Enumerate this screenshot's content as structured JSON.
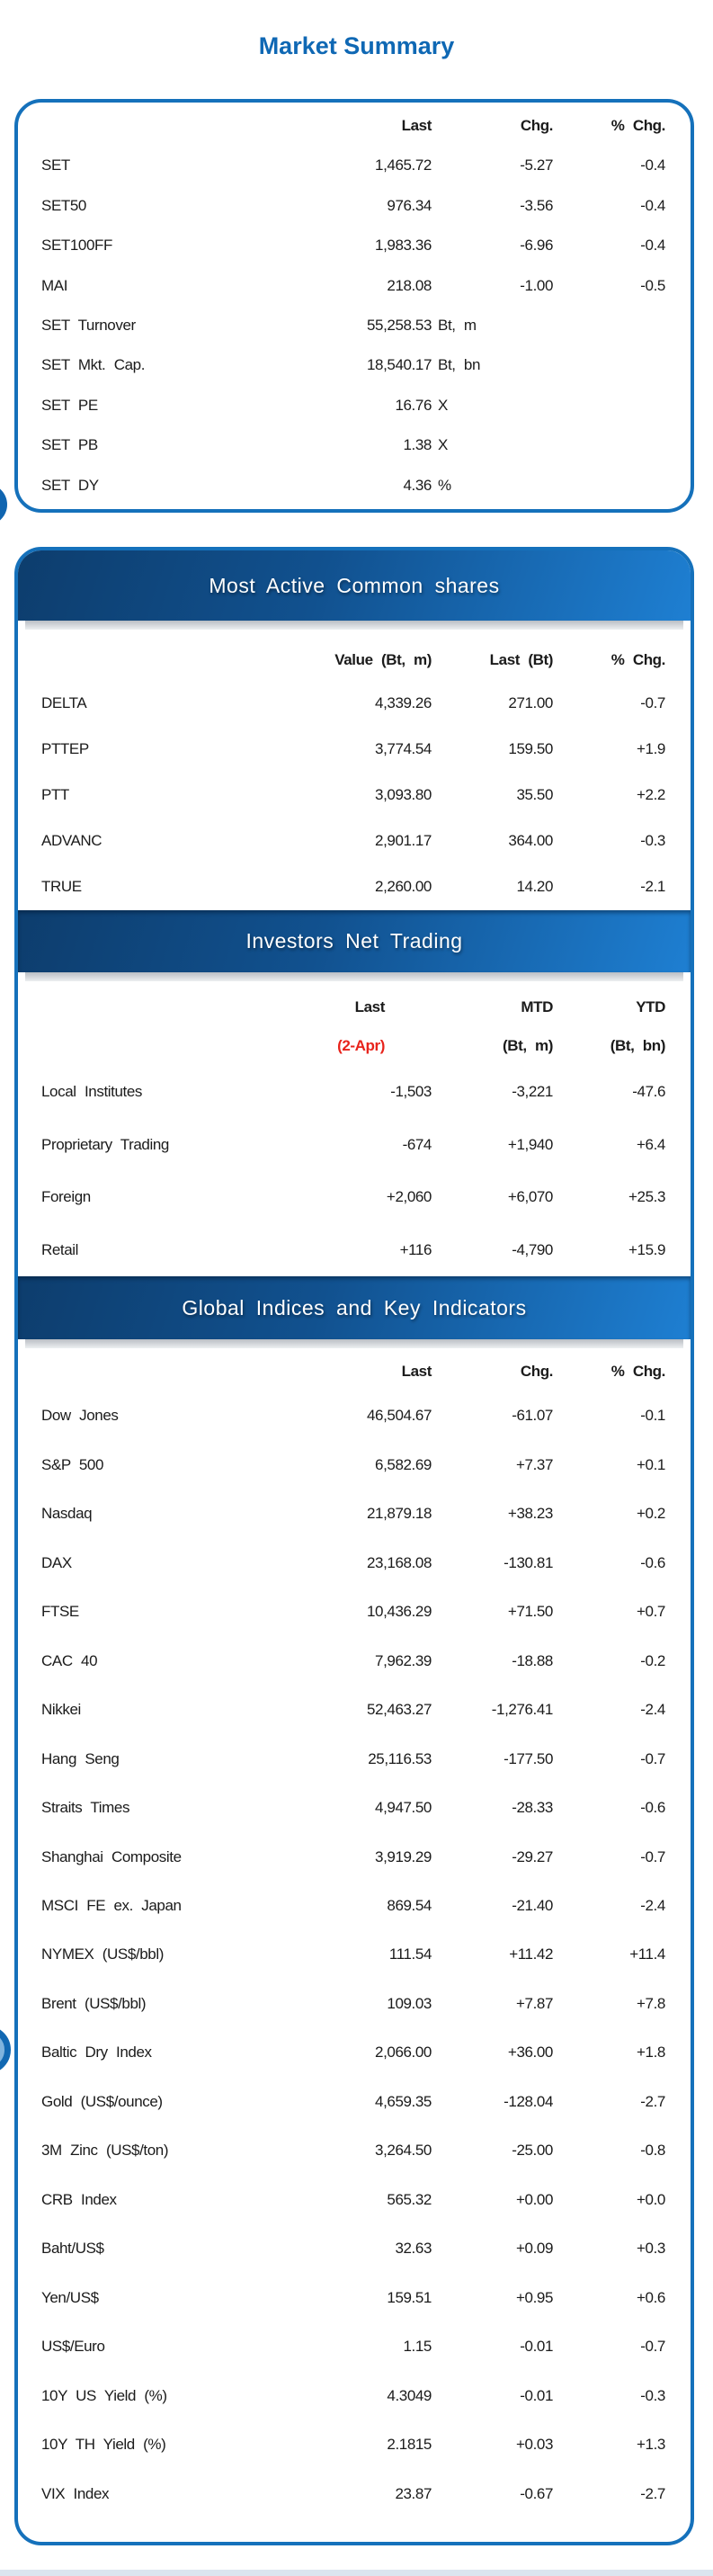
{
  "page_title": "Market Summary",
  "colors": {
    "accent_blue": "#1571bb",
    "title_blue": "#0f68b4",
    "bar_gradient_dark": "#0d3d6d",
    "bar_gradient_light": "#1e7fd2",
    "date_red": "#e8231b"
  },
  "market_summary": {
    "columns": [
      "Last",
      "Chg.",
      "% Chg."
    ],
    "rows": [
      {
        "label": "SET",
        "last": "1,465.72",
        "chg": "-5.27",
        "pct": "-0.4"
      },
      {
        "label": "SET50",
        "last": "976.34",
        "chg": "-3.56",
        "pct": "-0.4"
      },
      {
        "label": "SET100FF",
        "last": "1,983.36",
        "chg": "-6.96",
        "pct": "-0.4"
      },
      {
        "label": "MAI",
        "last": "218.08",
        "chg": "-1.00",
        "pct": "-0.5"
      },
      {
        "label": "SET Turnover",
        "last": "55,258.53",
        "suffix": "Bt, m"
      },
      {
        "label": "SET Mkt. Cap.",
        "last": "18,540.17",
        "suffix": "Bt, bn"
      },
      {
        "label": "SET PE",
        "last": "16.76",
        "suffix": "X"
      },
      {
        "label": "SET PB",
        "last": "1.38",
        "suffix": "X"
      },
      {
        "label": "SET DY",
        "last": "4.36",
        "suffix": "%"
      }
    ]
  },
  "most_active": {
    "title": "Most Active Common shares",
    "columns": [
      "Value (Bt, m)",
      "Last (Bt)",
      "% Chg."
    ],
    "rows": [
      {
        "label": "DELTA",
        "value": "4,339.26",
        "last": "271.00",
        "pct": "-0.7"
      },
      {
        "label": "PTTEP",
        "value": "3,774.54",
        "last": "159.50",
        "pct": "+1.9"
      },
      {
        "label": "PTT",
        "value": "3,093.80",
        "last": "35.50",
        "pct": "+2.2"
      },
      {
        "label": "ADVANC",
        "value": "2,901.17",
        "last": "364.00",
        "pct": "-0.3"
      },
      {
        "label": "TRUE",
        "value": "2,260.00",
        "last": "14.20",
        "pct": "-2.1"
      }
    ]
  },
  "investors": {
    "title": "Investors Net Trading",
    "columns": [
      "Last",
      "MTD",
      "YTD"
    ],
    "subcolumns": [
      "(2-Apr)",
      "(Bt, m)",
      "(Bt, bn)"
    ],
    "rows": [
      {
        "label": "Local Institutes",
        "last": "-1,503",
        "mtd": "-3,221",
        "ytd": "-47.6"
      },
      {
        "label": "Proprietary Trading",
        "last": "-674",
        "mtd": "+1,940",
        "ytd": "+6.4"
      },
      {
        "label": "Foreign",
        "last": "+2,060",
        "mtd": "+6,070",
        "ytd": "+25.3"
      },
      {
        "label": "Retail",
        "last": "+116",
        "mtd": "-4,790",
        "ytd": "+15.9"
      }
    ]
  },
  "global_indices": {
    "title": "Global Indices and Key Indicators",
    "columns": [
      "Last",
      "Chg.",
      "% Chg."
    ],
    "rows": [
      {
        "label": "Dow Jones",
        "last": "46,504.67",
        "chg": "-61.07",
        "pct": "-0.1"
      },
      {
        "label": "S&P 500",
        "last": "6,582.69",
        "chg": "+7.37",
        "pct": "+0.1"
      },
      {
        "label": "Nasdaq",
        "last": "21,879.18",
        "chg": "+38.23",
        "pct": "+0.2"
      },
      {
        "label": "DAX",
        "last": "23,168.08",
        "chg": "-130.81",
        "pct": "-0.6"
      },
      {
        "label": "FTSE",
        "last": "10,436.29",
        "chg": "+71.50",
        "pct": "+0.7"
      },
      {
        "label": "CAC 40",
        "last": "7,962.39",
        "chg": "-18.88",
        "pct": "-0.2"
      },
      {
        "label": "Nikkei",
        "last": "52,463.27",
        "chg": "-1,276.41",
        "pct": "-2.4"
      },
      {
        "label": "Hang Seng",
        "last": "25,116.53",
        "chg": "-177.50",
        "pct": "-0.7"
      },
      {
        "label": "Straits Times",
        "last": "4,947.50",
        "chg": "-28.33",
        "pct": "-0.6"
      },
      {
        "label": "Shanghai Composite",
        "last": "3,919.29",
        "chg": "-29.27",
        "pct": "-0.7"
      },
      {
        "label": "MSCI FE ex. Japan",
        "last": "869.54",
        "chg": "-21.40",
        "pct": "-2.4"
      },
      {
        "label": "NYMEX (US$/bbl)",
        "last": "111.54",
        "chg": "+11.42",
        "pct": "+11.4"
      },
      {
        "label": "Brent (US$/bbl)",
        "last": "109.03",
        "chg": "+7.87",
        "pct": "+7.8"
      },
      {
        "label": "Baltic Dry Index",
        "last": "2,066.00",
        "chg": "+36.00",
        "pct": "+1.8"
      },
      {
        "label": "Gold (US$/ounce)",
        "last": "4,659.35",
        "chg": "-128.04",
        "pct": "-2.7"
      },
      {
        "label": "3M Zinc (US$/ton)",
        "last": "3,264.50",
        "chg": "-25.00",
        "pct": "-0.8"
      },
      {
        "label": "CRB Index",
        "last": "565.32",
        "chg": "+0.00",
        "pct": "+0.0"
      },
      {
        "label": "Baht/US$",
        "last": "32.63",
        "chg": "+0.09",
        "pct": "+0.3"
      },
      {
        "label": "Yen/US$",
        "last": "159.51",
        "chg": "+0.95",
        "pct": "+0.6"
      },
      {
        "label": "US$/Euro",
        "last": "1.15",
        "chg": "-0.01",
        "pct": "-0.7"
      },
      {
        "label": "10Y US Yield (%)",
        "last": "4.3049",
        "chg": "-0.01",
        "pct": "-0.3"
      },
      {
        "label": "10Y TH Yield (%)",
        "last": "2.1815",
        "chg": "+0.03",
        "pct": "+1.3"
      },
      {
        "label": "VIX Index",
        "last": "23.87",
        "chg": "-0.67",
        "pct": "-2.7"
      }
    ]
  }
}
